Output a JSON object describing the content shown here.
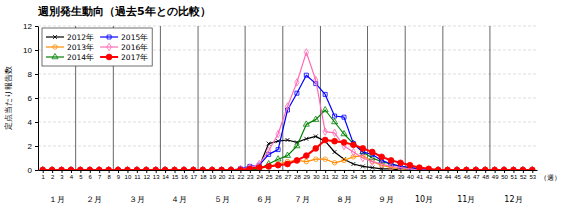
{
  "chart_data": {
    "type": "line",
    "title": "週別発生動向（過去5年との比較）",
    "ylabel": "定点当たり報告数",
    "xlabel": "（週）",
    "x": [
      1,
      2,
      3,
      4,
      5,
      6,
      7,
      8,
      9,
      10,
      11,
      12,
      13,
      14,
      15,
      16,
      17,
      18,
      19,
      20,
      21,
      22,
      23,
      24,
      25,
      26,
      27,
      28,
      29,
      30,
      31,
      32,
      33,
      34,
      35,
      36,
      37,
      38,
      39,
      40,
      41,
      42,
      43,
      44,
      45,
      46,
      47,
      48,
      49,
      50,
      51,
      52,
      53
    ],
    "xlim": [
      0.5,
      53.5
    ],
    "xticks": [
      1,
      2,
      3,
      4,
      5,
      6,
      7,
      8,
      9,
      10,
      11,
      12,
      13,
      14,
      15,
      16,
      17,
      18,
      19,
      20,
      21,
      22,
      23,
      24,
      25,
      26,
      27,
      28,
      29,
      30,
      31,
      32,
      33,
      34,
      35,
      36,
      37,
      38,
      39,
      40,
      41,
      42,
      43,
      44,
      45,
      46,
      47,
      48,
      49,
      50,
      51,
      52,
      53
    ],
    "ylim": [
      0,
      12
    ],
    "yticks": [
      0,
      2,
      4,
      6,
      8,
      10,
      12
    ],
    "grid": true,
    "legend": "upper left",
    "vlines": [
      4.5,
      8.5,
      13.5,
      17.5,
      22.5,
      26.5,
      30.5,
      35.5,
      39.5,
      43.5,
      48.5
    ],
    "annotations": [
      {
        "text": "１月",
        "x": 2.5
      },
      {
        "text": "２月",
        "x": 6.5
      },
      {
        "text": "３月",
        "x": 11
      },
      {
        "text": "４月",
        "x": 15.5
      },
      {
        "text": "５月",
        "x": 20
      },
      {
        "text": "６月",
        "x": 24.5
      },
      {
        "text": "７月",
        "x": 28.5
      },
      {
        "text": "８月",
        "x": 33
      },
      {
        "text": "９月",
        "x": 37.5
      },
      {
        "text": "10月",
        "x": 41.5
      },
      {
        "text": "11月",
        "x": 46
      },
      {
        "text": "12月",
        "x": 51
      }
    ],
    "series": [
      {
        "name": "2012年",
        "color": "#000000",
        "marker": "x",
        "values": [
          0,
          0,
          0,
          0,
          0,
          0,
          0,
          0,
          0,
          0,
          0,
          0,
          0,
          0,
          0,
          0,
          0,
          0,
          0,
          0,
          0,
          0,
          0.1,
          0.3,
          2.2,
          2.4,
          2.5,
          2.3,
          2.6,
          2.8,
          2.4,
          1.5,
          0.9,
          0.5,
          0.3,
          0.2,
          0.1,
          0.1,
          0,
          0,
          0,
          0,
          0,
          0,
          0,
          0,
          0,
          0,
          0,
          0,
          0,
          0,
          0
        ]
      },
      {
        "name": "2013年",
        "color": "#ff8c00",
        "marker": "circle",
        "values": [
          0,
          0,
          0,
          0,
          0,
          0,
          0,
          0,
          0,
          0,
          0,
          0,
          0,
          0,
          0,
          0,
          0,
          0,
          0,
          0,
          0,
          0,
          0,
          0.1,
          0.3,
          0.5,
          0.7,
          0.8,
          0.7,
          0.9,
          0.9,
          0.6,
          0.8,
          1.1,
          1.2,
          0.7,
          0.4,
          0.2,
          0.1,
          0.1,
          0,
          0,
          0,
          0,
          0,
          0,
          0,
          0,
          0,
          0,
          0,
          0,
          0
        ]
      },
      {
        "name": "2014年",
        "color": "#008000",
        "marker": "triangle",
        "values": [
          0,
          0,
          0,
          0,
          0,
          0,
          0,
          0,
          0,
          0,
          0,
          0,
          0,
          0,
          0,
          0,
          0,
          0,
          0,
          0,
          0,
          0,
          0,
          0.1,
          0.5,
          0.9,
          1.2,
          2.0,
          3.8,
          4.2,
          5.0,
          4.0,
          3.0,
          2.2,
          1.5,
          1.0,
          0.7,
          0.5,
          0.3,
          0.2,
          0.1,
          0,
          0,
          0,
          0,
          0,
          0,
          0,
          0,
          0,
          0,
          0,
          0
        ]
      },
      {
        "name": "2015年",
        "color": "#0000ff",
        "marker": "square",
        "values": [
          0,
          0,
          0,
          0,
          0,
          0,
          0,
          0,
          0,
          0,
          0,
          0,
          0,
          0,
          0,
          0,
          0,
          0,
          0,
          0,
          0,
          0.1,
          0.3,
          0.4,
          1.3,
          1.7,
          5.0,
          6.4,
          7.9,
          7.2,
          6.3,
          4.5,
          4.4,
          2.2,
          1.5,
          1.3,
          0.8,
          0.5,
          0.3,
          0.2,
          0.1,
          0,
          0,
          0,
          0,
          0,
          0,
          0,
          0,
          0,
          0,
          0,
          0
        ]
      },
      {
        "name": "2016年",
        "color": "#ff69b4",
        "marker": "diamond",
        "values": [
          0,
          0,
          0,
          0,
          0,
          0,
          0,
          0,
          0,
          0,
          0,
          0,
          0,
          0,
          0,
          0,
          0,
          0,
          0,
          0,
          0,
          0.1,
          0.2,
          0.5,
          1.6,
          3.0,
          5.3,
          7.3,
          9.8,
          7.5,
          3.2,
          3.1,
          2.0,
          1.5,
          1.0,
          0.7,
          0.5,
          0.3,
          0.2,
          0.1,
          0,
          0,
          0,
          0,
          0,
          0,
          0,
          0,
          0,
          0,
          0,
          0,
          0
        ]
      },
      {
        "name": "2017年",
        "color": "#ff0000",
        "marker": "filled-circle",
        "values": [
          0,
          0,
          0,
          0,
          0,
          0,
          0,
          0,
          0,
          0,
          0,
          0,
          0,
          0,
          0,
          0,
          0,
          0,
          0,
          0,
          0,
          0,
          0.1,
          0.2,
          0.3,
          0.4,
          0.5,
          0.8,
          1.2,
          1.8,
          2.5,
          2.4,
          2.3,
          2.1,
          1.8,
          1.5,
          1.1,
          0.8,
          0.6,
          0.4,
          0.2,
          0.1,
          0,
          0,
          0,
          0,
          0,
          0,
          0,
          0,
          0,
          0,
          0
        ]
      }
    ]
  }
}
